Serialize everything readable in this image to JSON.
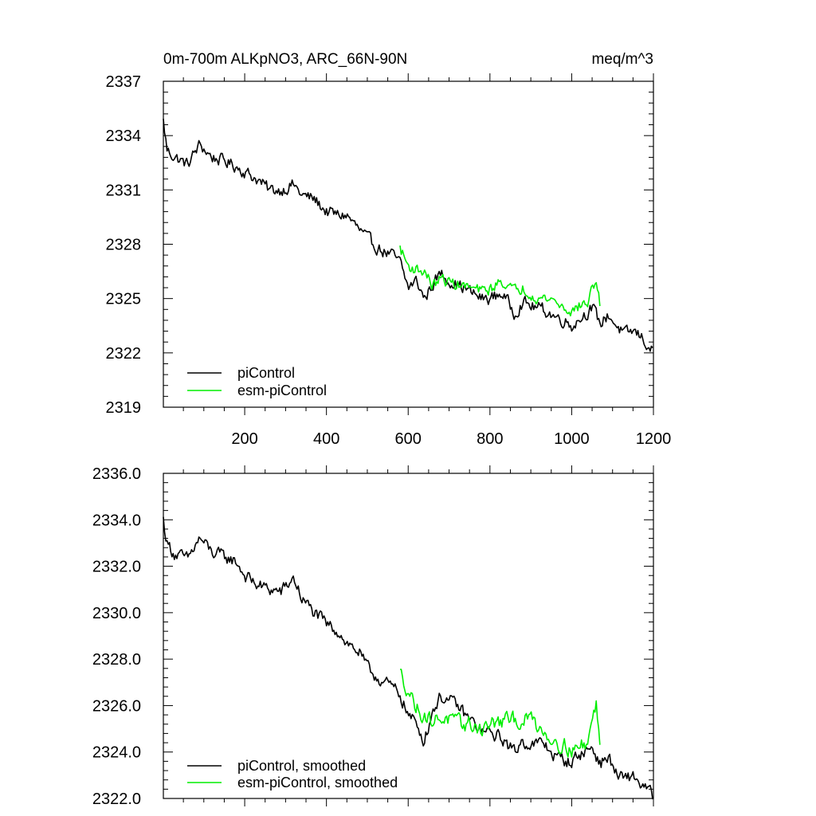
{
  "chart_data": [
    {
      "type": "line",
      "title_left": "0m-700m ALKpNO3, ARC_66N-90N",
      "title_right": "meq/m^3",
      "xlim": [
        1,
        1200
      ],
      "ylim": [
        2319,
        2337
      ],
      "yticks": [
        2319,
        2322,
        2325,
        2328,
        2331,
        2334,
        2337
      ],
      "ytick_labels": [
        "2319",
        "2322",
        "2325",
        "2328",
        "2331",
        "2334",
        "2337"
      ],
      "xticks": [
        200,
        400,
        600,
        800,
        1000,
        1200
      ],
      "xtick_labels": [
        "200",
        "400",
        "600",
        "800",
        "1000",
        "1200"
      ],
      "legend_position": "bottom-left",
      "legend": [
        "piControl",
        "esm-piControl"
      ],
      "series": [
        {
          "name": "piControl",
          "color": "#000000",
          "anchors": [
            [
              1,
              2334.8
            ],
            [
              10,
              2333.2
            ],
            [
              30,
              2332.8
            ],
            [
              60,
              2332.4
            ],
            [
              90,
              2333.5
            ],
            [
              120,
              2332.8
            ],
            [
              150,
              2332.6
            ],
            [
              180,
              2332.3
            ],
            [
              200,
              2332.0
            ],
            [
              230,
              2331.6
            ],
            [
              260,
              2331.0
            ],
            [
              290,
              2331.0
            ],
            [
              320,
              2331.3
            ],
            [
              340,
              2330.7
            ],
            [
              370,
              2330.5
            ],
            [
              400,
              2329.8
            ],
            [
              430,
              2329.6
            ],
            [
              450,
              2329.6
            ],
            [
              480,
              2328.8
            ],
            [
              500,
              2328.3
            ],
            [
              520,
              2327.9
            ],
            [
              540,
              2327.6
            ],
            [
              560,
              2327.4
            ],
            [
              580,
              2327.0
            ],
            [
              600,
              2325.6
            ],
            [
              620,
              2326.0
            ],
            [
              640,
              2325.0
            ],
            [
              660,
              2325.8
            ],
            [
              680,
              2326.4
            ],
            [
              700,
              2326.0
            ],
            [
              720,
              2325.8
            ],
            [
              750,
              2325.4
            ],
            [
              780,
              2325.0
            ],
            [
              800,
              2325.0
            ],
            [
              830,
              2325.3
            ],
            [
              860,
              2324.2
            ],
            [
              880,
              2324.8
            ],
            [
              900,
              2324.6
            ],
            [
              930,
              2324.4
            ],
            [
              960,
              2324.0
            ],
            [
              990,
              2323.7
            ],
            [
              1000,
              2323.5
            ],
            [
              1020,
              2323.9
            ],
            [
              1050,
              2324.5
            ],
            [
              1070,
              2323.6
            ],
            [
              1090,
              2324.1
            ],
            [
              1110,
              2323.5
            ],
            [
              1130,
              2323.0
            ],
            [
              1150,
              2323.2
            ],
            [
              1170,
              2322.9
            ],
            [
              1200,
              2322.0
            ]
          ],
          "noise_amplitude": 0.55
        },
        {
          "name": "esm-piControl",
          "color": "#00ee00",
          "anchors": [
            [
              580,
              2327.8
            ],
            [
              600,
              2326.8
            ],
            [
              620,
              2326.6
            ],
            [
              640,
              2326.5
            ],
            [
              660,
              2325.7
            ],
            [
              680,
              2326.1
            ],
            [
              700,
              2325.9
            ],
            [
              720,
              2325.8
            ],
            [
              750,
              2325.6
            ],
            [
              780,
              2325.4
            ],
            [
              800,
              2325.5
            ],
            [
              830,
              2326.0
            ],
            [
              860,
              2325.4
            ],
            [
              880,
              2325.6
            ],
            [
              900,
              2325.3
            ],
            [
              920,
              2325.0
            ],
            [
              950,
              2325.0
            ],
            [
              980,
              2324.5
            ],
            [
              1000,
              2324.3
            ],
            [
              1020,
              2324.6
            ],
            [
              1040,
              2324.8
            ],
            [
              1060,
              2326.1
            ],
            [
              1070,
              2324.5
            ]
          ],
          "noise_amplitude": 0.5
        }
      ]
    },
    {
      "type": "line",
      "xlim": [
        1,
        1200
      ],
      "ylim": [
        2322.0,
        2336.0
      ],
      "yticks": [
        2322.0,
        2324.0,
        2326.0,
        2328.0,
        2330.0,
        2332.0,
        2334.0,
        2336.0
      ],
      "ytick_labels": [
        "2322.0",
        "2324.0",
        "2326.0",
        "2328.0",
        "2330.0",
        "2332.0",
        "2334.0",
        "2336.0"
      ],
      "xticks": [
        200,
        400,
        600,
        800,
        1000,
        1200
      ],
      "legend_position": "bottom-left",
      "legend": [
        "piControl, smoothed",
        "esm-piControl, smoothed"
      ],
      "series": [
        {
          "name": "piControl, smoothed",
          "color": "#000000",
          "anchors": [
            [
              1,
              2334.0
            ],
            [
              10,
              2333.0
            ],
            [
              30,
              2332.5
            ],
            [
              60,
              2332.3
            ],
            [
              90,
              2333.2
            ],
            [
              120,
              2332.6
            ],
            [
              150,
              2332.4
            ],
            [
              180,
              2332.2
            ],
            [
              200,
              2331.6
            ],
            [
              230,
              2331.2
            ],
            [
              260,
              2331.0
            ],
            [
              290,
              2330.9
            ],
            [
              320,
              2331.5
            ],
            [
              340,
              2330.6
            ],
            [
              370,
              2330.0
            ],
            [
              400,
              2329.5
            ],
            [
              430,
              2329.2
            ],
            [
              450,
              2328.7
            ],
            [
              480,
              2328.3
            ],
            [
              500,
              2327.6
            ],
            [
              520,
              2327.3
            ],
            [
              540,
              2327.0
            ],
            [
              560,
              2326.8
            ],
            [
              580,
              2326.5
            ],
            [
              600,
              2325.6
            ],
            [
              620,
              2325.2
            ],
            [
              640,
              2324.5
            ],
            [
              660,
              2325.8
            ],
            [
              680,
              2326.4
            ],
            [
              700,
              2326.2
            ],
            [
              720,
              2326.0
            ],
            [
              750,
              2325.4
            ],
            [
              780,
              2324.9
            ],
            [
              800,
              2324.8
            ],
            [
              830,
              2324.6
            ],
            [
              860,
              2324.0
            ],
            [
              880,
              2324.5
            ],
            [
              900,
              2324.3
            ],
            [
              930,
              2324.4
            ],
            [
              960,
              2323.8
            ],
            [
              990,
              2323.6
            ],
            [
              1000,
              2323.6
            ],
            [
              1020,
              2323.9
            ],
            [
              1050,
              2324.2
            ],
            [
              1070,
              2323.5
            ],
            [
              1090,
              2323.8
            ],
            [
              1110,
              2323.0
            ],
            [
              1130,
              2322.8
            ],
            [
              1150,
              2323.0
            ],
            [
              1170,
              2322.6
            ],
            [
              1200,
              2322.1
            ]
          ],
          "noise_amplitude": 0.45
        },
        {
          "name": "esm-piControl, smoothed",
          "color": "#00ee00",
          "anchors": [
            [
              580,
              2327.4
            ],
            [
              600,
              2326.7
            ],
            [
              620,
              2325.9
            ],
            [
              640,
              2325.6
            ],
            [
              660,
              2325.3
            ],
            [
              680,
              2325.5
            ],
            [
              700,
              2325.4
            ],
            [
              720,
              2325.2
            ],
            [
              750,
              2325.2
            ],
            [
              780,
              2325.0
            ],
            [
              800,
              2325.2
            ],
            [
              830,
              2325.3
            ],
            [
              860,
              2325.4
            ],
            [
              880,
              2325.3
            ],
            [
              900,
              2325.5
            ],
            [
              920,
              2325.1
            ],
            [
              950,
              2324.6
            ],
            [
              980,
              2324.3
            ],
            [
              1000,
              2324.1
            ],
            [
              1020,
              2324.2
            ],
            [
              1040,
              2324.5
            ],
            [
              1060,
              2326.1
            ],
            [
              1070,
              2324.0
            ]
          ],
          "noise_amplitude": 0.55
        }
      ]
    }
  ]
}
